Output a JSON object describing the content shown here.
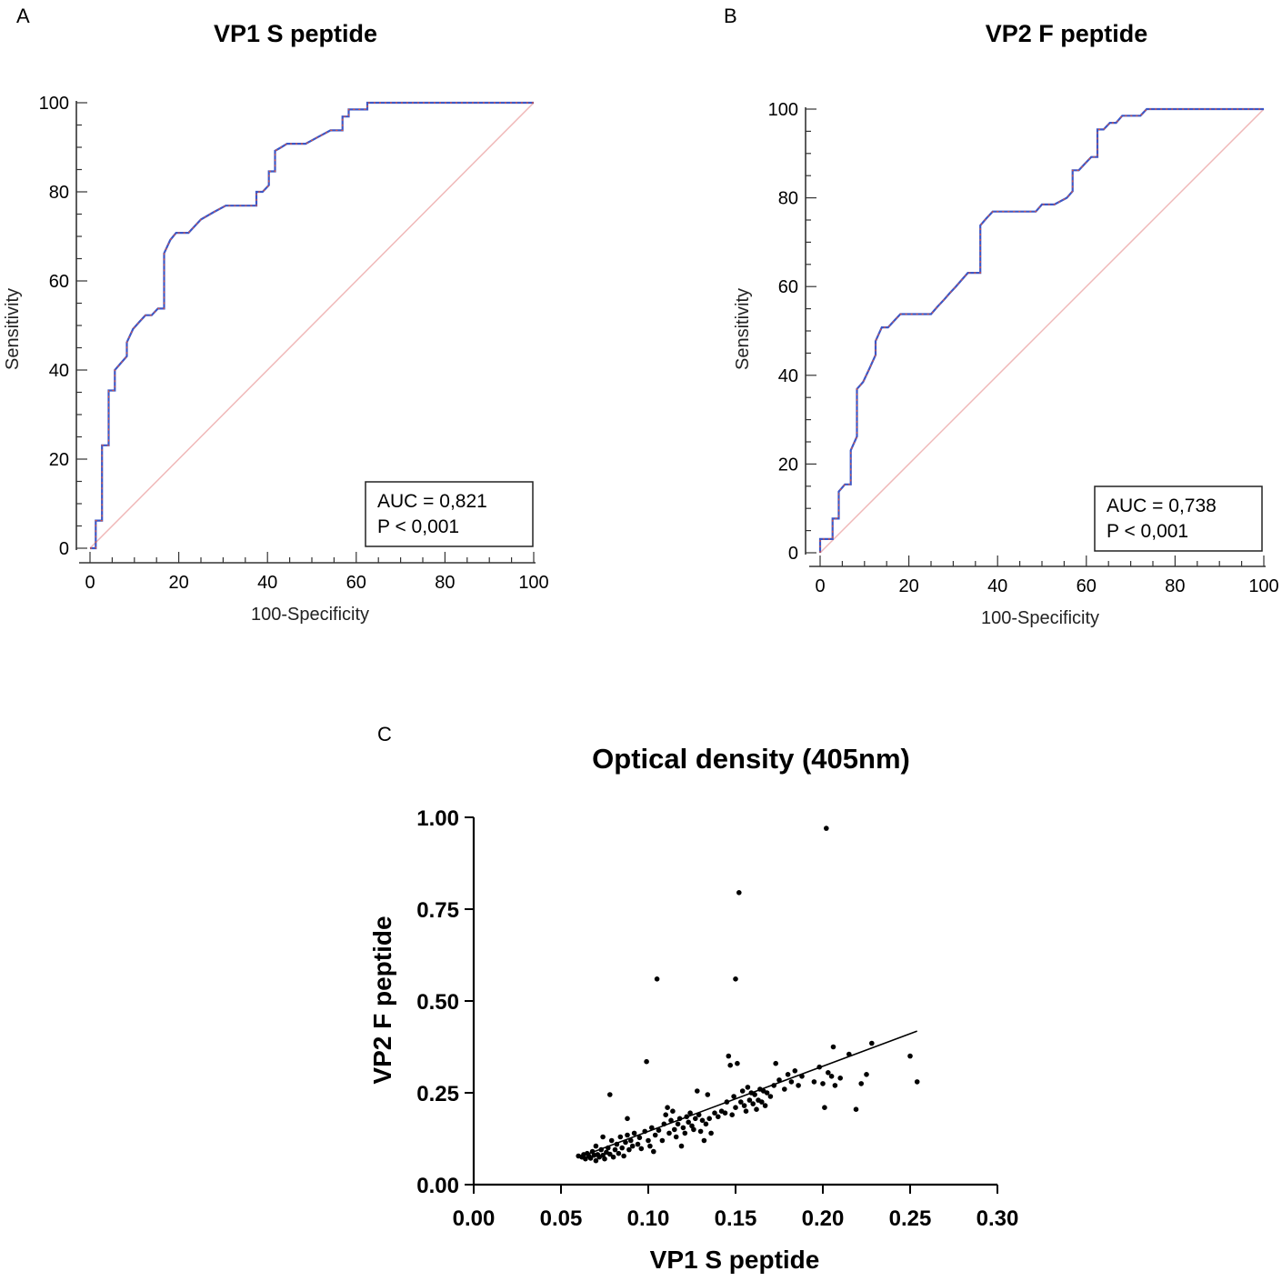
{
  "chart_data": [
    {
      "type": "line",
      "panel": "A",
      "title": "VP1 S peptide",
      "xlabel": "100-Specificity",
      "ylabel": "Sensitivity",
      "xlim": [
        0,
        100
      ],
      "ylim": [
        0,
        100
      ],
      "xticks": [
        "0",
        "20",
        "40",
        "60",
        "80",
        "100"
      ],
      "yticks": [
        "0",
        "20",
        "40",
        "60",
        "80",
        "100"
      ],
      "series": [
        {
          "name": "ROC curve",
          "color": "#3b57c8",
          "x": [
            0,
            1.3,
            1.3,
            2.7,
            2.7,
            4.2,
            4.2,
            5.6,
            5.6,
            6.9,
            8.3,
            8.3,
            9.7,
            11.1,
            12.5,
            13.9,
            15.3,
            15.3,
            16.7,
            16.7,
            18.1,
            19.4,
            22.2,
            25,
            27.8,
            30.6,
            33.3,
            36.1,
            37.5,
            37.5,
            38.9,
            40.3,
            40.3,
            41.7,
            41.7,
            43.1,
            44.4,
            45.8,
            48.6,
            51.4,
            54.2,
            56.9,
            56.9,
            58.3,
            58.3,
            62.5,
            62.5,
            70,
            80,
            100
          ],
          "y": [
            0,
            0,
            6.2,
            6.2,
            23.1,
            23.1,
            35.4,
            35.4,
            40,
            41.5,
            43.1,
            46.2,
            49.2,
            50.8,
            52.3,
            52.3,
            53.8,
            53.8,
            53.8,
            66.2,
            69.2,
            70.8,
            70.8,
            73.8,
            75.4,
            76.9,
            76.9,
            76.9,
            76.9,
            80,
            80,
            81.5,
            84.6,
            84.6,
            89.2,
            90,
            90.8,
            90.8,
            90.8,
            92.3,
            93.8,
            93.8,
            96.9,
            96.9,
            98.5,
            98.5,
            100,
            100,
            100,
            100
          ]
        },
        {
          "name": "Reference line",
          "color": "#f0b8b8",
          "x": [
            0,
            100
          ],
          "y": [
            0,
            100
          ]
        }
      ],
      "annotation": {
        "auc": "AUC = 0,821",
        "p": "P < 0,001"
      }
    },
    {
      "type": "line",
      "panel": "B",
      "title": "VP2 F peptide",
      "xlabel": "100-Specificity",
      "ylabel": "Sensitivity",
      "xlim": [
        0,
        100
      ],
      "ylim": [
        0,
        100
      ],
      "xticks": [
        "0",
        "20",
        "40",
        "60",
        "80",
        "100"
      ],
      "yticks": [
        "0",
        "20",
        "40",
        "60",
        "80",
        "100"
      ],
      "series": [
        {
          "name": "ROC curve",
          "color": "#3b57c8",
          "x": [
            0,
            0,
            2.8,
            2.8,
            4.2,
            4.2,
            5.6,
            6.9,
            6.9,
            8.3,
            8.3,
            9.7,
            11.1,
            12.5,
            12.5,
            13.9,
            15.3,
            16.7,
            18.1,
            19.4,
            22.2,
            25,
            26.4,
            27.8,
            29.2,
            30.6,
            31.9,
            33.3,
            34.7,
            36.1,
            36.1,
            37.5,
            38.9,
            41.7,
            44.4,
            47.2,
            48.6,
            50,
            52.8,
            55.6,
            56.9,
            56.9,
            58.3,
            59.7,
            61.1,
            62.5,
            62.5,
            63.9,
            65.3,
            66.7,
            68.1,
            69.4,
            70.8,
            72.2,
            73.6,
            75,
            80,
            100
          ],
          "y": [
            0,
            3.1,
            3.1,
            7.7,
            7.7,
            13.8,
            15.4,
            15.4,
            23.1,
            26.2,
            36.9,
            38.5,
            41.5,
            44.6,
            47.7,
            50.8,
            50.8,
            52.3,
            53.8,
            53.8,
            53.8,
            53.8,
            55.4,
            56.9,
            58.5,
            60,
            61.5,
            63.1,
            63.1,
            63.1,
            73.8,
            75.4,
            76.9,
            76.9,
            76.9,
            76.9,
            76.9,
            78.5,
            78.5,
            80,
            81.5,
            86.2,
            86.2,
            87.7,
            89.2,
            89.2,
            95.4,
            95.4,
            96.9,
            96.9,
            98.5,
            98.5,
            98.5,
            98.5,
            100,
            100,
            100,
            100
          ]
        },
        {
          "name": "Reference line",
          "color": "#f0b8b8",
          "x": [
            0,
            100
          ],
          "y": [
            0,
            100
          ]
        }
      ],
      "annotation": {
        "auc": "AUC = 0,738",
        "p": "P < 0,001"
      }
    },
    {
      "type": "scatter",
      "panel": "C",
      "title": "Optical density (405nm)",
      "xlabel": "VP1 S peptide",
      "ylabel": "VP2 F peptide",
      "xlim": [
        0,
        0.3
      ],
      "ylim": [
        0,
        1
      ],
      "xticks": [
        "0.00",
        "0.05",
        "0.10",
        "0.15",
        "0.20",
        "0.25",
        "0.30"
      ],
      "yticks": [
        "0.00",
        "0.25",
        "0.50",
        "0.75",
        "1.00"
      ],
      "regression_line": {
        "x": [
          0.06,
          0.254
        ],
        "y": [
          0.074,
          0.418
        ]
      },
      "points": [
        [
          0.06,
          0.078
        ],
        [
          0.062,
          0.075
        ],
        [
          0.063,
          0.082
        ],
        [
          0.064,
          0.07
        ],
        [
          0.065,
          0.085
        ],
        [
          0.066,
          0.078
        ],
        [
          0.067,
          0.072
        ],
        [
          0.068,
          0.09
        ],
        [
          0.069,
          0.08
        ],
        [
          0.07,
          0.065
        ],
        [
          0.07,
          0.105
        ],
        [
          0.071,
          0.082
        ],
        [
          0.072,
          0.075
        ],
        [
          0.073,
          0.095
        ],
        [
          0.074,
          0.08
        ],
        [
          0.074,
          0.13
        ],
        [
          0.075,
          0.07
        ],
        [
          0.076,
          0.088
        ],
        [
          0.077,
          0.1
        ],
        [
          0.078,
          0.083
        ],
        [
          0.078,
          0.245
        ],
        [
          0.079,
          0.12
        ],
        [
          0.08,
          0.075
        ],
        [
          0.081,
          0.095
        ],
        [
          0.082,
          0.11
        ],
        [
          0.083,
          0.085
        ],
        [
          0.084,
          0.13
        ],
        [
          0.085,
          0.1
        ],
        [
          0.086,
          0.078
        ],
        [
          0.087,
          0.115
        ],
        [
          0.088,
          0.18
        ],
        [
          0.088,
          0.135
        ],
        [
          0.089,
          0.095
        ],
        [
          0.09,
          0.12
        ],
        [
          0.091,
          0.105
        ],
        [
          0.092,
          0.14
        ],
        [
          0.094,
          0.11
        ],
        [
          0.095,
          0.128
        ],
        [
          0.096,
          0.098
        ],
        [
          0.098,
          0.145
        ],
        [
          0.099,
          0.335
        ],
        [
          0.1,
          0.12
        ],
        [
          0.101,
          0.105
        ],
        [
          0.102,
          0.155
        ],
        [
          0.103,
          0.09
        ],
        [
          0.104,
          0.135
        ],
        [
          0.105,
          0.56
        ],
        [
          0.106,
          0.148
        ],
        [
          0.108,
          0.12
        ],
        [
          0.109,
          0.165
        ],
        [
          0.11,
          0.19
        ],
        [
          0.111,
          0.21
        ],
        [
          0.112,
          0.14
        ],
        [
          0.113,
          0.175
        ],
        [
          0.114,
          0.2
        ],
        [
          0.115,
          0.15
        ],
        [
          0.116,
          0.13
        ],
        [
          0.117,
          0.165
        ],
        [
          0.118,
          0.18
        ],
        [
          0.119,
          0.105
        ],
        [
          0.12,
          0.155
        ],
        [
          0.121,
          0.14
        ],
        [
          0.122,
          0.185
        ],
        [
          0.123,
          0.17
        ],
        [
          0.124,
          0.195
        ],
        [
          0.125,
          0.16
        ],
        [
          0.126,
          0.15
        ],
        [
          0.127,
          0.18
        ],
        [
          0.128,
          0.255
        ],
        [
          0.129,
          0.19
        ],
        [
          0.13,
          0.145
        ],
        [
          0.131,
          0.175
        ],
        [
          0.132,
          0.12
        ],
        [
          0.133,
          0.165
        ],
        [
          0.134,
          0.245
        ],
        [
          0.135,
          0.18
        ],
        [
          0.136,
          0.14
        ],
        [
          0.138,
          0.195
        ],
        [
          0.14,
          0.185
        ],
        [
          0.142,
          0.2
        ],
        [
          0.144,
          0.195
        ],
        [
          0.145,
          0.225
        ],
        [
          0.146,
          0.35
        ],
        [
          0.147,
          0.325
        ],
        [
          0.148,
          0.19
        ],
        [
          0.149,
          0.24
        ],
        [
          0.15,
          0.56
        ],
        [
          0.15,
          0.21
        ],
        [
          0.151,
          0.33
        ],
        [
          0.152,
          0.795
        ],
        [
          0.153,
          0.225
        ],
        [
          0.154,
          0.255
        ],
        [
          0.155,
          0.215
        ],
        [
          0.156,
          0.2
        ],
        [
          0.157,
          0.265
        ],
        [
          0.158,
          0.23
        ],
        [
          0.159,
          0.25
        ],
        [
          0.16,
          0.22
        ],
        [
          0.161,
          0.245
        ],
        [
          0.162,
          0.205
        ],
        [
          0.163,
          0.23
        ],
        [
          0.164,
          0.26
        ],
        [
          0.165,
          0.225
        ],
        [
          0.166,
          0.255
        ],
        [
          0.167,
          0.215
        ],
        [
          0.168,
          0.25
        ],
        [
          0.17,
          0.24
        ],
        [
          0.172,
          0.27
        ],
        [
          0.173,
          0.33
        ],
        [
          0.175,
          0.285
        ],
        [
          0.178,
          0.26
        ],
        [
          0.18,
          0.3
        ],
        [
          0.182,
          0.28
        ],
        [
          0.184,
          0.31
        ],
        [
          0.186,
          0.27
        ],
        [
          0.188,
          0.295
        ],
        [
          0.195,
          0.28
        ],
        [
          0.198,
          0.32
        ],
        [
          0.2,
          0.275
        ],
        [
          0.201,
          0.21
        ],
        [
          0.202,
          0.97
        ],
        [
          0.203,
          0.305
        ],
        [
          0.205,
          0.295
        ],
        [
          0.206,
          0.375
        ],
        [
          0.207,
          0.27
        ],
        [
          0.21,
          0.29
        ],
        [
          0.215,
          0.355
        ],
        [
          0.219,
          0.205
        ],
        [
          0.222,
          0.275
        ],
        [
          0.225,
          0.3
        ],
        [
          0.228,
          0.385
        ],
        [
          0.25,
          0.35
        ],
        [
          0.254,
          0.28
        ]
      ]
    }
  ]
}
